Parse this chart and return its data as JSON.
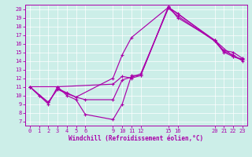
{
  "xlabel": "Windchill (Refroidissement éolien,°C)",
  "bg_color": "#cceee8",
  "line_color": "#aa00aa",
  "xlim": [
    -0.5,
    23.5
  ],
  "ylim": [
    6.5,
    20.5
  ],
  "xticks": [
    0,
    1,
    2,
    3,
    4,
    5,
    6,
    9,
    10,
    11,
    12,
    15,
    16,
    20,
    21,
    22,
    23
  ],
  "yticks": [
    7,
    8,
    9,
    10,
    11,
    12,
    13,
    14,
    15,
    16,
    17,
    18,
    19,
    20
  ],
  "lines": [
    {
      "x": [
        0,
        1,
        2,
        3,
        4,
        5,
        6,
        9,
        10,
        11,
        12,
        15,
        16,
        20,
        21,
        22,
        23
      ],
      "y": [
        11,
        10,
        9,
        11,
        10,
        9.5,
        7.8,
        7.2,
        9.0,
        12.3,
        12.3,
        20.3,
        19.0,
        16.4,
        15.1,
        14.7,
        14.0
      ]
    },
    {
      "x": [
        0,
        1,
        2,
        3,
        4,
        5,
        6,
        9,
        10,
        11,
        12,
        15,
        16,
        20,
        21,
        22,
        23
      ],
      "y": [
        11,
        10,
        9.2,
        10.8,
        10.3,
        9.8,
        9.5,
        9.5,
        11.8,
        12.1,
        12.5,
        20.1,
        19.2,
        16.3,
        15.0,
        14.5,
        14.1
      ]
    },
    {
      "x": [
        0,
        2,
        3,
        4,
        5,
        9,
        10,
        11,
        15,
        16,
        20,
        21,
        22,
        23
      ],
      "y": [
        11,
        9.2,
        10.7,
        10.2,
        9.8,
        12.0,
        14.7,
        16.7,
        20.2,
        19.5,
        16.3,
        15.2,
        15.0,
        14.3
      ]
    },
    {
      "x": [
        0,
        3,
        9,
        10,
        11,
        12,
        15,
        20,
        22,
        23
      ],
      "y": [
        11,
        11.0,
        11.3,
        12.2,
        12.0,
        12.3,
        20.2,
        16.4,
        14.5,
        14.2
      ]
    }
  ]
}
